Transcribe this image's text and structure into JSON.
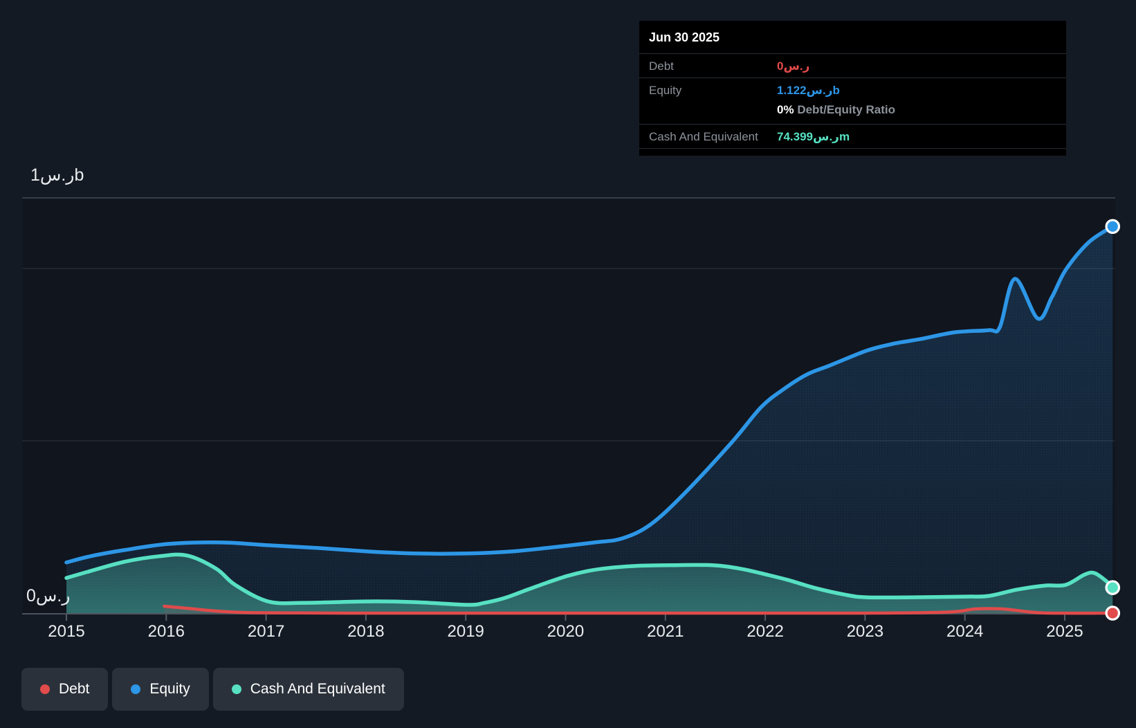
{
  "page": {
    "background": "#141a23"
  },
  "tooltip": {
    "date": "Jun 30 2025",
    "debt_label": "Debt",
    "debt_value": "0ر.س",
    "equity_label": "Equity",
    "equity_value": "1.122ر.سb",
    "ratio_value": "0%",
    "ratio_label": "Debt/Equity Ratio",
    "cash_label": "Cash And Equivalent",
    "cash_value": "74.399ر.سm"
  },
  "y_axis": {
    "top_label": "1ر.سb",
    "zero_label": "0ر.س"
  },
  "x_axis": {
    "years": [
      "2015",
      "2016",
      "2017",
      "2018",
      "2019",
      "2020",
      "2021",
      "2022",
      "2023",
      "2024",
      "2025"
    ]
  },
  "legend": [
    {
      "label": "Debt",
      "color": "#e14b4b"
    },
    {
      "label": "Equity",
      "color": "#2d96e6"
    },
    {
      "label": "Cash And Equivalent",
      "color": "#57e0c2"
    }
  ],
  "chart_data": {
    "type": "area",
    "title": "Debt to Equity History",
    "unit": "SAR billions",
    "xlim": [
      2015,
      2025.5
    ],
    "ylim": [
      0,
      1.2
    ],
    "grid": true,
    "legend_position": "bottom-left",
    "gridline_values": [
      1.0,
      0.5,
      0
    ],
    "last_point_date": "Jun 30 2025",
    "series": [
      {
        "name": "Debt",
        "color": "#e14b4b",
        "points": [
          [
            2015.98,
            0.02
          ],
          [
            2016.21,
            0.014
          ],
          [
            2016.5,
            0.006
          ],
          [
            2016.76,
            0.002
          ],
          [
            2017.02,
            0.001
          ],
          [
            2017.8,
            0.0
          ],
          [
            2019.19,
            0.0
          ],
          [
            2020.57,
            0.0
          ],
          [
            2021.96,
            0.0
          ],
          [
            2023.01,
            0.0
          ],
          [
            2023.83,
            0.003
          ],
          [
            2024.1,
            0.012
          ],
          [
            2024.38,
            0.012
          ],
          [
            2024.66,
            0.003
          ],
          [
            2024.87,
            0.0
          ],
          [
            2025.48,
            0.0
          ]
        ]
      },
      {
        "name": "Equity",
        "color": "#2d96e6",
        "points": [
          [
            2015.0,
            0.147
          ],
          [
            2015.24,
            0.165
          ],
          [
            2015.58,
            0.183
          ],
          [
            2016.03,
            0.201
          ],
          [
            2016.55,
            0.205
          ],
          [
            2017.02,
            0.197
          ],
          [
            2017.52,
            0.189
          ],
          [
            2018.02,
            0.179
          ],
          [
            2018.49,
            0.173
          ],
          [
            2019.02,
            0.173
          ],
          [
            2019.46,
            0.179
          ],
          [
            2019.81,
            0.189
          ],
          [
            2020.29,
            0.205
          ],
          [
            2020.57,
            0.217
          ],
          [
            2020.85,
            0.257
          ],
          [
            2021.19,
            0.347
          ],
          [
            2021.66,
            0.494
          ],
          [
            2021.96,
            0.598
          ],
          [
            2022.19,
            0.651
          ],
          [
            2022.42,
            0.693
          ],
          [
            2022.65,
            0.719
          ],
          [
            2023.01,
            0.761
          ],
          [
            2023.27,
            0.781
          ],
          [
            2023.55,
            0.795
          ],
          [
            2023.9,
            0.815
          ],
          [
            2024.24,
            0.821
          ],
          [
            2024.35,
            0.83
          ],
          [
            2024.5,
            0.97
          ],
          [
            2024.73,
            0.855
          ],
          [
            2024.87,
            0.916
          ],
          [
            2025.01,
            0.996
          ],
          [
            2025.24,
            1.076
          ],
          [
            2025.48,
            1.122
          ]
        ]
      },
      {
        "name": "Cash And Equivalent",
        "color": "#57e0c2",
        "points": [
          [
            2015.0,
            0.102
          ],
          [
            2015.24,
            0.122
          ],
          [
            2015.58,
            0.149
          ],
          [
            2015.93,
            0.165
          ],
          [
            2016.21,
            0.167
          ],
          [
            2016.5,
            0.129
          ],
          [
            2016.69,
            0.082
          ],
          [
            2017.02,
            0.034
          ],
          [
            2017.38,
            0.03
          ],
          [
            2018.02,
            0.034
          ],
          [
            2018.49,
            0.032
          ],
          [
            2019.02,
            0.024
          ],
          [
            2019.19,
            0.03
          ],
          [
            2019.39,
            0.044
          ],
          [
            2019.6,
            0.066
          ],
          [
            2019.81,
            0.088
          ],
          [
            2020.02,
            0.108
          ],
          [
            2020.22,
            0.122
          ],
          [
            2020.43,
            0.131
          ],
          [
            2020.71,
            0.137
          ],
          [
            2021.06,
            0.139
          ],
          [
            2021.47,
            0.139
          ],
          [
            2021.75,
            0.129
          ],
          [
            2022.01,
            0.112
          ],
          [
            2022.23,
            0.096
          ],
          [
            2022.51,
            0.072
          ],
          [
            2022.79,
            0.054
          ],
          [
            2023.01,
            0.046
          ],
          [
            2023.48,
            0.046
          ],
          [
            2024.01,
            0.048
          ],
          [
            2024.24,
            0.05
          ],
          [
            2024.52,
            0.068
          ],
          [
            2024.8,
            0.08
          ],
          [
            2025.01,
            0.082
          ],
          [
            2025.2,
            0.112
          ],
          [
            2025.3,
            0.116
          ],
          [
            2025.42,
            0.092
          ],
          [
            2025.48,
            0.074
          ]
        ]
      }
    ]
  }
}
